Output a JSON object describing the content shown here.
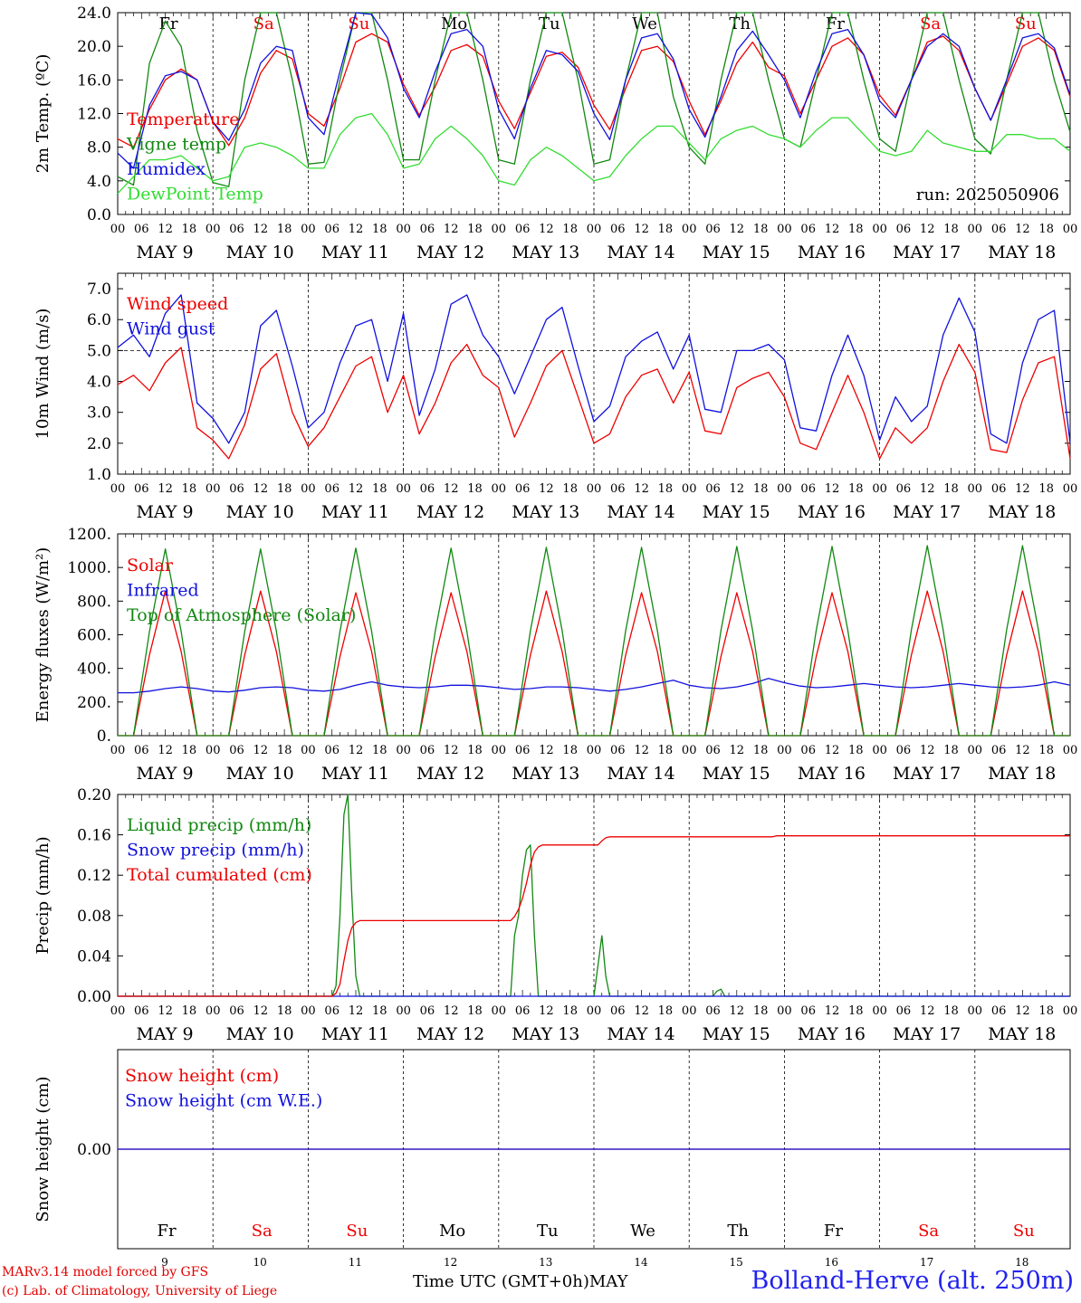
{
  "chart_data": [
    {
      "type": "line",
      "ylabel": "2m Temp. (ºC)",
      "ylim": [
        0,
        24
      ],
      "yticks": [
        "0.0",
        "4.0",
        "8.0",
        "12.0",
        "16.0",
        "20.0",
        "24.0"
      ],
      "yticklist": [
        0,
        4,
        8,
        12,
        16,
        20,
        24
      ],
      "annotation": "run: 2025050906",
      "day_labels": true,
      "series": [
        {
          "name": "Temperature",
          "color": "#ee0000",
          "values": [
            9,
            8,
            12.5,
            16,
            17.3,
            16,
            11,
            8.2,
            11.5,
            16.8,
            19.5,
            18.5,
            12,
            10.5,
            15,
            20.5,
            21.5,
            20.5,
            15.5,
            11.8,
            15.2,
            19.5,
            20.2,
            18.8,
            13.5,
            10.2,
            14.5,
            18.8,
            19.3,
            17.5,
            13,
            10.1,
            15,
            19.5,
            20,
            18.2,
            13.5,
            9.5,
            13.5,
            18,
            20.5,
            17.5,
            16.5,
            12,
            16,
            20,
            21,
            19,
            14.2,
            11.8,
            16,
            20.5,
            21.2,
            19.5,
            15,
            11.2,
            15.5,
            20,
            21,
            19.5,
            14
          ]
        },
        {
          "name": "Vigne temp",
          "color": "#118811",
          "values": [
            4.5,
            3.5,
            18,
            23,
            20,
            10,
            3.8,
            3.3,
            16,
            24,
            24,
            16,
            6,
            6.2,
            16,
            24,
            24,
            16,
            6.5,
            6.5,
            16,
            24,
            24,
            16,
            6.5,
            6,
            16,
            24,
            24,
            16,
            6,
            6.5,
            16,
            24,
            24,
            14,
            8,
            6,
            16,
            24,
            24,
            16,
            9,
            8,
            16,
            24,
            24,
            16,
            9,
            7.5,
            16,
            24,
            24,
            16,
            9,
            7.2,
            16,
            24,
            24,
            16,
            9.8
          ]
        },
        {
          "name": "Humidex",
          "color": "#1111dd",
          "values": [
            7.3,
            5.5,
            13,
            16.5,
            17,
            16,
            11,
            8.8,
            12.5,
            18,
            20,
            19.5,
            11.5,
            9.5,
            17,
            24,
            23.8,
            21,
            15,
            11.5,
            17,
            21.5,
            22,
            20,
            12.5,
            9,
            15,
            19.5,
            19,
            17,
            12,
            8.9,
            16,
            21,
            21.5,
            18.5,
            12.5,
            9.2,
            14,
            19.5,
            21.8,
            19,
            16,
            11.5,
            17,
            21.5,
            22,
            19,
            13.5,
            11.5,
            16,
            20,
            21.5,
            20,
            15,
            11.2,
            16,
            21,
            21.5,
            19.8,
            14.2
          ]
        },
        {
          "name": "DewPoint Temp",
          "color": "#33dd33",
          "values": [
            2.5,
            4.5,
            6.5,
            6.5,
            7,
            5.5,
            4,
            4.5,
            8,
            8.5,
            8,
            7,
            5.5,
            5.5,
            9.5,
            11.5,
            12,
            9.5,
            5.5,
            6,
            9,
            10.5,
            9,
            7,
            4,
            3.5,
            6.5,
            8,
            7,
            5.5,
            4,
            4.5,
            7,
            9,
            10.5,
            10.5,
            8.5,
            6.5,
            9,
            10,
            10.5,
            9.5,
            9,
            8,
            10,
            11.5,
            11.5,
            9.5,
            7.5,
            7,
            7.5,
            10,
            8.5,
            8,
            7.5,
            7.5,
            9.5,
            9.5,
            9,
            9,
            7.5
          ]
        }
      ]
    },
    {
      "type": "line",
      "ylabel": "10m Wind (m/s)",
      "ylim": [
        1,
        7.5
      ],
      "yticks": [
        "1.0",
        "2.0",
        "3.0",
        "4.0",
        "5.0",
        "6.0",
        "7.0"
      ],
      "yticklist": [
        1,
        2,
        3,
        4,
        5,
        6,
        7
      ],
      "ref_line": 5.0,
      "series": [
        {
          "name": "Wind speed",
          "color": "#ee0000",
          "values": [
            3.9,
            4.2,
            3.7,
            4.6,
            5.1,
            2.5,
            2.1,
            1.5,
            2.6,
            4.4,
            4.9,
            3.0,
            1.9,
            2.5,
            3.5,
            4.5,
            4.8,
            3.0,
            4.2,
            2.3,
            3.3,
            4.6,
            5.2,
            4.2,
            3.8,
            2.2,
            3.3,
            4.5,
            5.0,
            3.5,
            2.0,
            2.3,
            3.5,
            4.2,
            4.4,
            3.3,
            4.3,
            2.4,
            2.3,
            3.8,
            4.1,
            4.3,
            3.5,
            2.0,
            1.8,
            3.0,
            4.2,
            3.0,
            1.5,
            2.5,
            2.0,
            2.5,
            4.0,
            5.2,
            4.3,
            1.8,
            1.7,
            3.4,
            4.6,
            4.8,
            1.5
          ]
        },
        {
          "name": "Wind gust",
          "color": "#1111dd",
          "values": [
            5.1,
            5.5,
            4.8,
            6.2,
            6.8,
            3.3,
            2.8,
            2.0,
            3.0,
            5.8,
            6.3,
            4.5,
            2.5,
            3.0,
            4.6,
            5.8,
            6.0,
            4.0,
            6.2,
            2.9,
            4.4,
            6.5,
            6.8,
            5.5,
            4.8,
            3.6,
            4.8,
            6.0,
            6.4,
            4.5,
            2.7,
            3.2,
            4.8,
            5.3,
            5.6,
            4.4,
            5.5,
            3.1,
            3.0,
            5.0,
            5.0,
            5.2,
            4.7,
            2.5,
            2.4,
            4.2,
            5.5,
            4.2,
            2.1,
            3.5,
            2.7,
            3.2,
            5.5,
            6.7,
            5.6,
            2.3,
            2.0,
            4.6,
            6.0,
            6.3,
            2.0
          ]
        }
      ]
    },
    {
      "type": "line",
      "ylabel": "Energy fluxes (W/m²)",
      "ylim": [
        0,
        1200
      ],
      "yticks": [
        "0.",
        "200.",
        "400.",
        "600.",
        "800.",
        "1000.",
        "1200."
      ],
      "yticklist": [
        0,
        200,
        400,
        600,
        800,
        1000,
        1200
      ],
      "series": [
        {
          "name": "Solar",
          "color": "#ee0000",
          "values": [
            0,
            0,
            480,
            860,
            500,
            0,
            0,
            0,
            480,
            860,
            500,
            0,
            0,
            0,
            470,
            850,
            500,
            0,
            0,
            0,
            470,
            850,
            500,
            0,
            0,
            0,
            480,
            860,
            500,
            0,
            0,
            0,
            480,
            850,
            500,
            0,
            0,
            0,
            470,
            850,
            500,
            0,
            0,
            0,
            470,
            850,
            500,
            0,
            0,
            0,
            480,
            860,
            500,
            0,
            0,
            0,
            480,
            860,
            500,
            0,
            0
          ]
        },
        {
          "name": "Infrared",
          "color": "#1111dd",
          "values": [
            255,
            255,
            265,
            280,
            290,
            280,
            265,
            260,
            270,
            285,
            290,
            285,
            270,
            265,
            275,
            300,
            320,
            300,
            290,
            285,
            290,
            300,
            300,
            295,
            285,
            275,
            280,
            290,
            290,
            285,
            275,
            265,
            275,
            290,
            310,
            330,
            300,
            285,
            280,
            290,
            310,
            340,
            315,
            295,
            285,
            290,
            300,
            310,
            300,
            290,
            285,
            290,
            300,
            310,
            300,
            290,
            285,
            290,
            300,
            320,
            300
          ]
        },
        {
          "name": "Top of Atmosphere (Solar)",
          "color": "#118811",
          "values": [
            0,
            0,
            620,
            1110,
            620,
            0,
            0,
            0,
            620,
            1110,
            620,
            0,
            0,
            0,
            620,
            1115,
            620,
            0,
            0,
            0,
            620,
            1115,
            620,
            0,
            0,
            0,
            625,
            1120,
            625,
            0,
            0,
            0,
            625,
            1120,
            625,
            0,
            0,
            0,
            625,
            1125,
            625,
            0,
            0,
            0,
            625,
            1125,
            625,
            0,
            0,
            0,
            630,
            1130,
            630,
            0,
            0,
            0,
            630,
            1130,
            630,
            0,
            0
          ]
        }
      ]
    },
    {
      "type": "line",
      "ylabel": "Precip (mm/h)",
      "ylim": [
        0,
        0.2
      ],
      "yticks": [
        "0.00",
        "0.04",
        "0.08",
        "0.12",
        "0.16",
        "0.20"
      ],
      "yticklist": [
        0,
        0.04,
        0.08,
        0.12,
        0.16,
        0.2
      ],
      "series": [
        {
          "name": "Liquid precip (mm/h)",
          "color": "#118811",
          "x": [
            0,
            54,
            55,
            56,
            57,
            58,
            59,
            60,
            61,
            62,
            99,
            100,
            101,
            102,
            103,
            104,
            105,
            106,
            107,
            120,
            121,
            122,
            123,
            124,
            150,
            151,
            152,
            153,
            240
          ],
          "values": [
            0,
            0,
            0.01,
            0.08,
            0.18,
            0.2,
            0.1,
            0.02,
            0,
            0,
            0,
            0.06,
            0.08,
            0.12,
            0.145,
            0.15,
            0.06,
            0,
            0,
            0,
            0.03,
            0.06,
            0.02,
            0,
            0,
            0.005,
            0.007,
            0,
            0
          ]
        },
        {
          "name": "Snow precip (mm/h)",
          "color": "#1111dd",
          "x": [
            0,
            240
          ],
          "values": [
            0,
            0
          ]
        },
        {
          "name": "Total cumulated (cm)",
          "color": "#ee0000",
          "x": [
            0,
            54,
            55,
            56,
            57,
            58,
            59,
            60,
            61,
            99,
            100,
            101,
            102,
            103,
            104,
            105,
            106,
            107,
            121,
            122,
            123,
            124,
            165,
            166,
            240
          ],
          "values": [
            0,
            0,
            0.003,
            0.012,
            0.035,
            0.055,
            0.068,
            0.073,
            0.075,
            0.075,
            0.079,
            0.086,
            0.097,
            0.112,
            0.13,
            0.143,
            0.148,
            0.15,
            0.15,
            0.154,
            0.157,
            0.158,
            0.158,
            0.159,
            0.159
          ]
        }
      ]
    },
    {
      "type": "line",
      "ylabel": "Snow height (cm)",
      "ylim": [
        -1,
        1
      ],
      "yticks": [
        "0.00"
      ],
      "yticklist": [
        0
      ],
      "series": [
        {
          "name": "Snow height (cm)",
          "color": "#ee0000",
          "x": [
            0,
            240
          ],
          "values": [
            0,
            0
          ]
        },
        {
          "name": "Snow height (cm W.E.)",
          "color": "#1111dd",
          "x": [
            0,
            240
          ],
          "values": [
            0,
            0
          ]
        }
      ]
    }
  ],
  "x_axis": {
    "hour_labels": [
      "00",
      "06",
      "12",
      "18"
    ],
    "final_label": "00",
    "date_labels": [
      "MAY  9",
      "MAY 10",
      "MAY 11",
      "MAY 12",
      "MAY 13",
      "MAY 14",
      "MAY 15",
      "MAY 16",
      "MAY 17",
      "MAY 18"
    ],
    "weekdays": [
      "Fr",
      "Sa",
      "Su",
      "Mo",
      "Tu",
      "We",
      "Th",
      "Fr",
      "Sa",
      "Su"
    ],
    "weekday_colors": [
      "#000000",
      "#ee0000",
      "#ee0000",
      "#000000",
      "#000000",
      "#000000",
      "#000000",
      "#000000",
      "#ee0000",
      "#ee0000"
    ],
    "day_numbers": [
      "9",
      "10",
      "11",
      "12",
      "13",
      "14",
      "15",
      "16",
      "17",
      "18"
    ],
    "xlabel": "Time UTC (GMT+0h)",
    "month": "MAY"
  },
  "footer": {
    "credit_model": "MARv3.14 model forced by GFS",
    "credit_lab": "(c) Lab. of Climatology, University of Liege",
    "station": "Bolland-Herve (alt. 250m)"
  }
}
